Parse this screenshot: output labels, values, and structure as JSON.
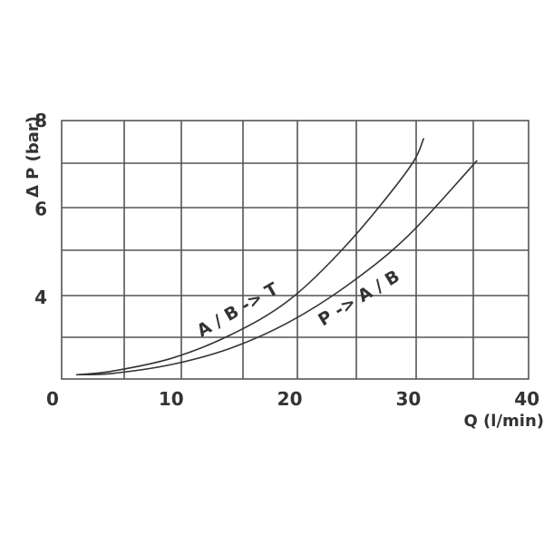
{
  "chart_data": {
    "type": "line",
    "xlabel": "Q (l/min)",
    "ylabel": "Δ P (bar)",
    "xlim": [
      0,
      40
    ],
    "ylim": [
      2.1,
      8
    ],
    "grid": true,
    "x_ticks": [
      "0",
      "10",
      "20",
      "30",
      "40"
    ],
    "y_ticks": [
      "4",
      "6",
      "8"
    ],
    "series": [
      {
        "name": "A / B -> T",
        "points": [
          [
            2,
            2.25
          ],
          [
            5,
            2.33
          ],
          [
            10,
            2.62
          ],
          [
            15,
            3.15
          ],
          [
            20,
            3.95
          ],
          [
            25,
            5.25
          ],
          [
            30,
            6.9
          ],
          [
            31.3,
            7.6
          ]
        ]
      },
      {
        "name": "P -> A / B",
        "points": [
          [
            2,
            2.25
          ],
          [
            5,
            2.28
          ],
          [
            10,
            2.48
          ],
          [
            15,
            2.85
          ],
          [
            20,
            3.45
          ],
          [
            25,
            4.3
          ],
          [
            30,
            5.4
          ],
          [
            35.8,
            7.1
          ]
        ]
      }
    ]
  },
  "colors": {
    "line": "#333333",
    "grid": "#555555",
    "text": "#333333"
  }
}
